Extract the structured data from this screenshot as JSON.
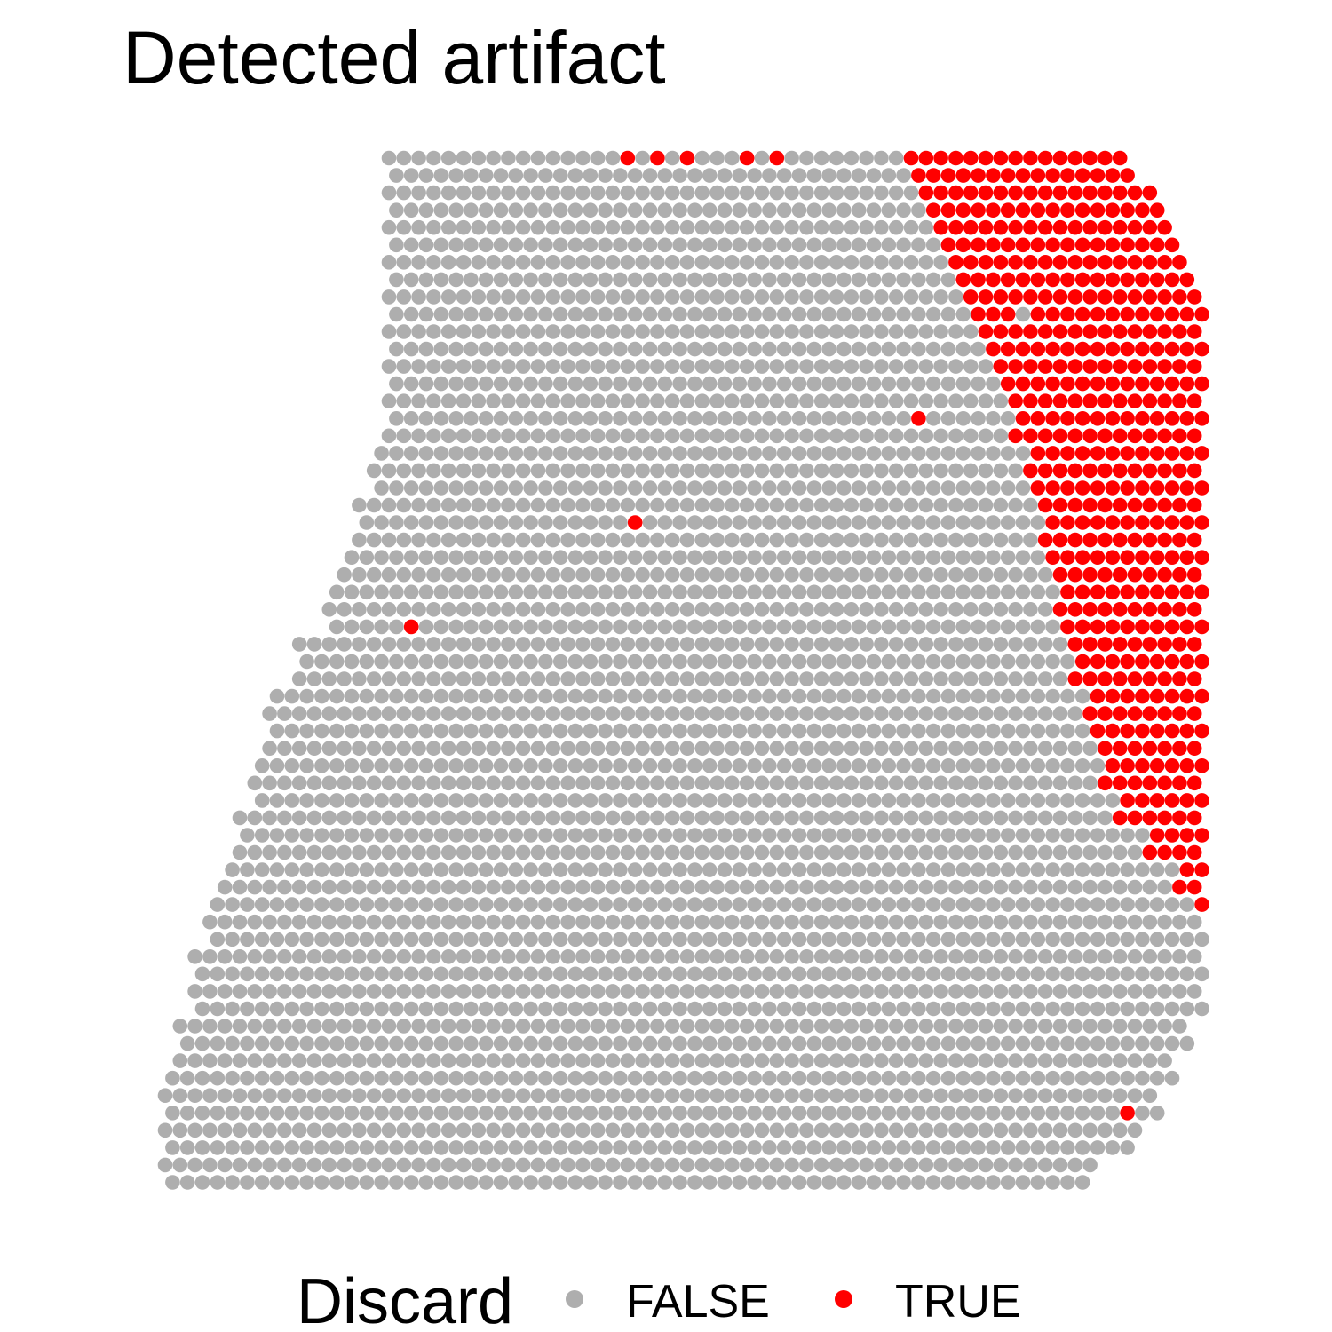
{
  "chart_data": {
    "type": "scatter",
    "title": "Detected artifact",
    "xlabel": "",
    "ylabel": "",
    "grid": false,
    "legend": {
      "title": "Discard",
      "placement": "bottom",
      "entries": [
        {
          "label": "FALSE",
          "color": "#AEAEAE"
        },
        {
          "label": "TRUE",
          "color": "#FF0000"
        }
      ]
    },
    "grid_layout": "hexagonal spot array, 70 columns x 60 rows",
    "tissue_boundary": {
      "columns": [
        0,
        69
      ],
      "rows": [
        0,
        59
      ],
      "left_edge_by_row_step": [
        [
          0,
          15
        ],
        [
          17,
          14
        ],
        [
          20,
          13
        ],
        [
          23,
          12
        ],
        [
          25,
          11
        ],
        [
          28,
          9
        ],
        [
          31,
          7
        ],
        [
          35,
          6
        ],
        [
          38,
          5
        ],
        [
          41,
          4
        ],
        [
          43,
          3
        ],
        [
          46,
          2
        ],
        [
          50,
          1
        ],
        [
          53,
          0
        ]
      ],
      "right_edge_by_row_step": [
        [
          0,
          64
        ],
        [
          2,
          66
        ],
        [
          4,
          67
        ],
        [
          6,
          68
        ],
        [
          8,
          69
        ],
        [
          50,
          68
        ],
        [
          52,
          67
        ],
        [
          54,
          66
        ],
        [
          56,
          65
        ],
        [
          57,
          64
        ],
        [
          58,
          62
        ],
        [
          59,
          61
        ]
      ]
    },
    "series": [
      {
        "name": "FALSE",
        "color": "#AEAEAE",
        "description_points": "all tissue spots not listed as TRUE"
      },
      {
        "name": "TRUE",
        "color": "#FF0000",
        "region_left_edge_by_row_step": [
          [
            0,
            50
          ],
          [
            2,
            51
          ],
          [
            4,
            52
          ],
          [
            6,
            53
          ],
          [
            8,
            54
          ],
          [
            10,
            55
          ],
          [
            12,
            56
          ],
          [
            14,
            57
          ],
          [
            17,
            58
          ],
          [
            20,
            59
          ],
          [
            24,
            60
          ],
          [
            28,
            61
          ],
          [
            31,
            62
          ],
          [
            34,
            63
          ],
          [
            37,
            64
          ],
          [
            39,
            66
          ],
          [
            41,
            68
          ],
          [
            43,
            69
          ]
        ],
        "region_rows": [
          0,
          43
        ],
        "isolated_points": [
          [
            31,
            0
          ],
          [
            33,
            0
          ],
          [
            35,
            0
          ],
          [
            39,
            0
          ],
          [
            41,
            0
          ],
          [
            50,
            15
          ],
          [
            31,
            21
          ],
          [
            16,
            27
          ],
          [
            64,
            55
          ]
        ],
        "excluded_points": [
          [
            57,
            9
          ]
        ]
      }
    ]
  }
}
